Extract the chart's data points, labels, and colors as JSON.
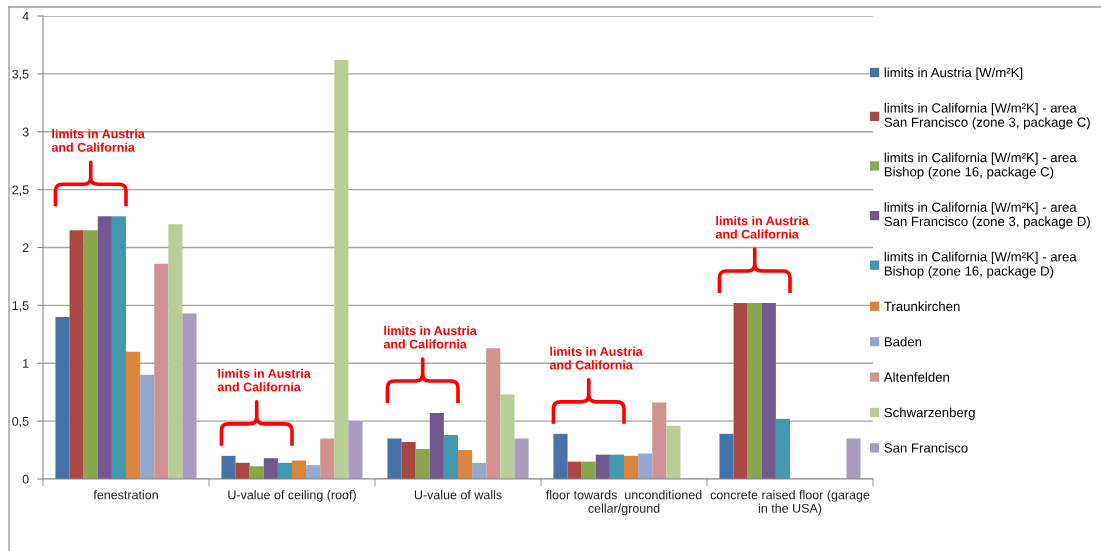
{
  "chart_data": {
    "type": "bar",
    "categories": [
      "fenestration",
      "U-value of ceiling (roof)",
      "U-value of walls",
      "floor towards  unconditioned\ncellar/ground",
      "concrete raised floor (garage\nin the USA)"
    ],
    "series": [
      {
        "name": "limits in Austria [W/m²K]",
        "color": "#4572a7",
        "values": [
          1.4,
          0.2,
          0.35,
          0.39,
          0.39
        ]
      },
      {
        "name": "limits in California [W/m²K] - area\nSan Francisco (zone 3, package C)",
        "color": "#aa4643",
        "values": [
          2.15,
          0.14,
          0.32,
          0.15,
          1.52
        ]
      },
      {
        "name": "limits in California [W/m²K] - area\nBishop (zone 16, package C)",
        "color": "#89a54e",
        "values": [
          2.15,
          0.11,
          0.26,
          0.15,
          1.52
        ]
      },
      {
        "name": "limits in California [W/m²K] - area\nSan Francisco (zone 3, package D)",
        "color": "#71588f",
        "values": [
          2.27,
          0.18,
          0.57,
          0.21,
          1.52
        ]
      },
      {
        "name": "limits in California [W/m²K] - area\nBishop (zone 16, package D)",
        "color": "#4198af",
        "values": [
          2.27,
          0.14,
          0.38,
          0.21,
          0.52
        ]
      },
      {
        "name": "Traunkirchen",
        "color": "#db843d",
        "values": [
          1.1,
          0.16,
          0.25,
          0.2,
          null
        ]
      },
      {
        "name": "Baden",
        "color": "#93a9cf",
        "values": [
          0.9,
          0.12,
          0.14,
          0.22,
          null
        ]
      },
      {
        "name": "Altenfelden",
        "color": "#d19392",
        "values": [
          1.86,
          0.35,
          1.13,
          0.66,
          null
        ]
      },
      {
        "name": "Schwarzenberg",
        "color": "#b9cd96",
        "values": [
          2.2,
          3.62,
          0.73,
          0.46,
          null
        ]
      },
      {
        "name": "San Francisco",
        "color": "#a99bbd",
        "values": [
          1.43,
          0.5,
          0.35,
          null,
          0.35
        ]
      }
    ],
    "ylim": [
      0,
      4
    ],
    "yticks": [
      0,
      {
        "value": 0.5,
        "label": "0,5"
      },
      1,
      {
        "value": 1.5,
        "label": "1,5"
      },
      2,
      {
        "value": 2.5,
        "label": "2,5"
      },
      3,
      {
        "value": 3.5,
        "label": "3,5"
      },
      4
    ],
    "grid": "y",
    "legend": "right",
    "annotations": [
      "limits in Austria\nand California",
      "limits in Austria\nand California",
      "limits in Austria\nand California",
      "limits in Austria\nand California",
      "limits in Austria\nand California"
    ]
  }
}
